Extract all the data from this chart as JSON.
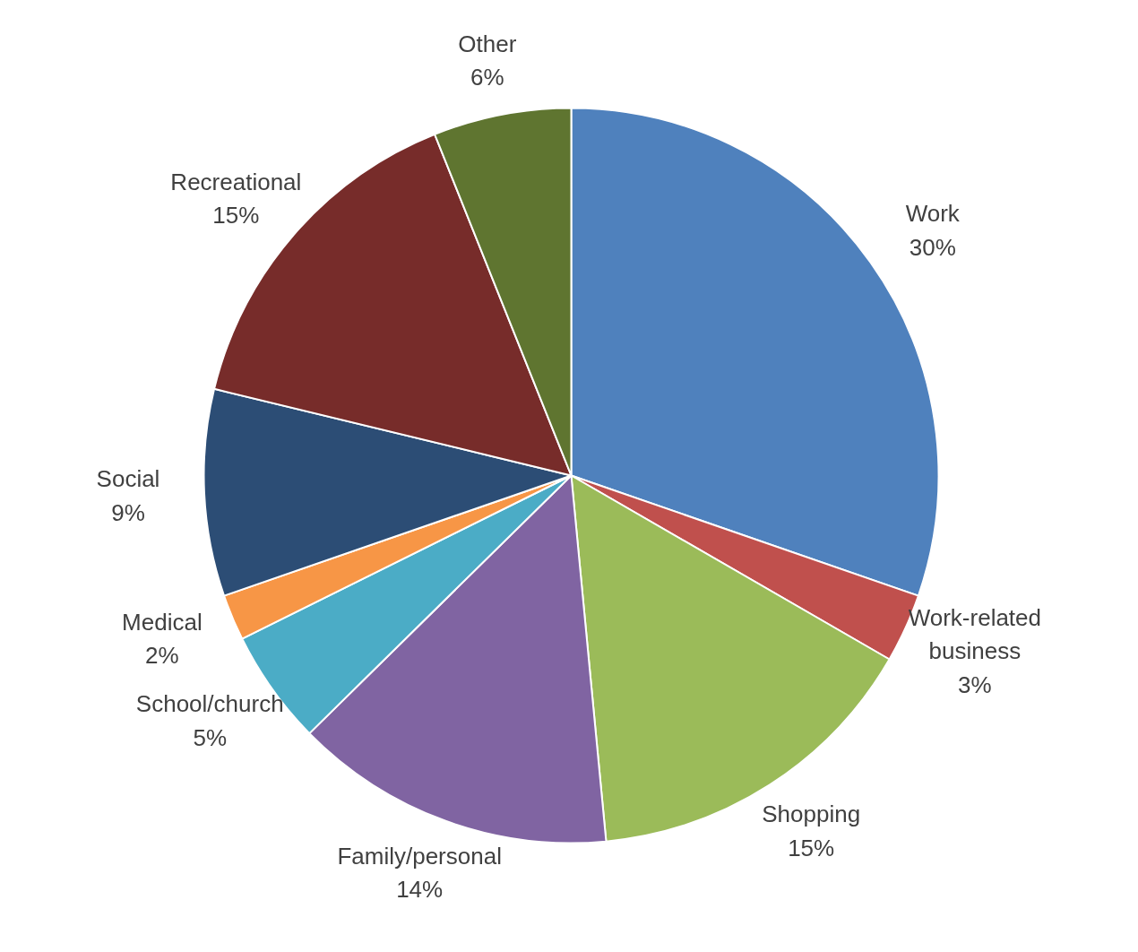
{
  "chart_data": {
    "type": "pie",
    "categories": [
      "Work",
      "Work-related business",
      "Shopping",
      "Family/personal",
      "School/church",
      "Medical",
      "Social",
      "Recreational",
      "Other"
    ],
    "values": [
      30,
      3,
      15,
      14,
      5,
      2,
      9,
      15,
      6
    ],
    "value_labels": [
      "30%",
      "3%",
      "15%",
      "14%",
      "5%",
      "2%",
      "9%",
      "15%",
      "6%"
    ],
    "colors": [
      "#4f81bd",
      "#c0504d",
      "#9bbb59",
      "#8064a2",
      "#4bacc6",
      "#f79646",
      "#2c4d75",
      "#772c2a",
      "#5f7530"
    ],
    "legend": false
  }
}
